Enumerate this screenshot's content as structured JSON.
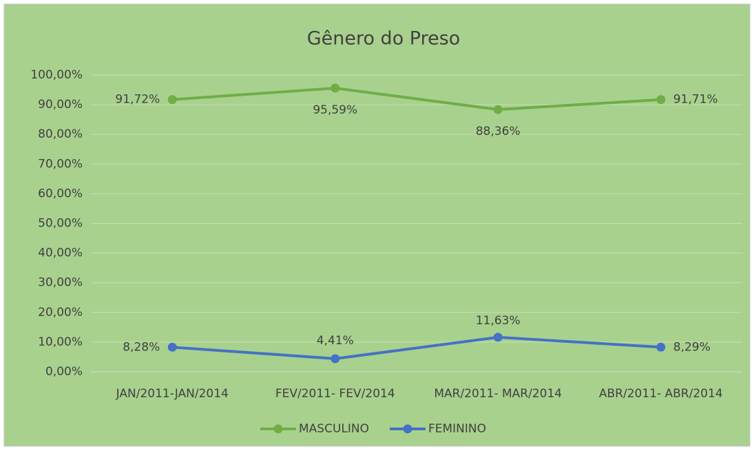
{
  "chart_data": {
    "type": "line",
    "title": "Gênero do Preso",
    "categories": [
      "JAN/2011-JAN/2014",
      "FEV/2011- FEV/2014",
      "MAR/2011- MAR/2014",
      "ABR/2011- ABR/2014"
    ],
    "series": [
      {
        "name": "MASCULINO",
        "color": "#70ad47",
        "values": [
          91.72,
          95.59,
          88.36,
          91.71
        ],
        "value_labels": [
          "91,72%",
          "95,59%",
          "88,36%",
          "91,71%"
        ]
      },
      {
        "name": "FEMININO",
        "color": "#4472c4",
        "values": [
          8.28,
          4.41,
          11.63,
          8.29
        ],
        "value_labels": [
          "8,28%",
          "4,41%",
          "11,63%",
          "8,29%"
        ]
      }
    ],
    "ylim": [
      0,
      100
    ],
    "yticks": [
      {
        "value": 0,
        "label": "0,00%"
      },
      {
        "value": 10,
        "label": "10,00%"
      },
      {
        "value": 20,
        "label": "20,00%"
      },
      {
        "value": 30,
        "label": "30,00%"
      },
      {
        "value": 40,
        "label": "40,00%"
      },
      {
        "value": 50,
        "label": "50,00%"
      },
      {
        "value": 60,
        "label": "60,00%"
      },
      {
        "value": 70,
        "label": "70,00%"
      },
      {
        "value": 80,
        "label": "80,00%"
      },
      {
        "value": 90,
        "label": "90,00%"
      },
      {
        "value": 100,
        "label": "100,00%"
      }
    ],
    "grid": true,
    "legend": "bottom"
  }
}
